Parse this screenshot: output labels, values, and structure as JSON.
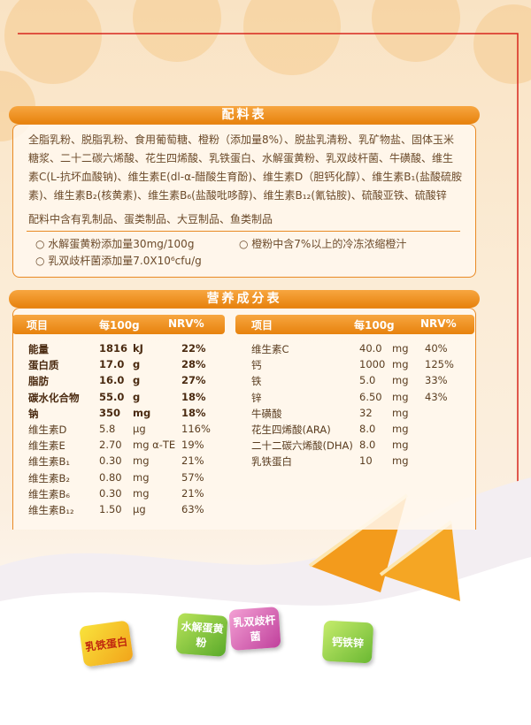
{
  "ingredients": {
    "title": "配料表",
    "text": "全脂乳粉、脱脂乳粉、食用葡萄糖、橙粉（添加量8%）、脱盐乳清粉、乳矿物盐、固体玉米糖浆、二十二碳六烯酸、花生四烯酸、乳铁蛋白、水解蛋黄粉、乳双歧杆菌、牛磺酸、维生素C(L-抗坏血酸钠)、维生素E(dl-α-醋酸生育酚)、维生素D（胆钙化醇）、维生素B₁(盐酸硫胺素)、维生素B₂(核黄素)、维生素B₆(盐酸吡哆醇)、维生素B₁₂(氰钴胺)、硫酸亚铁、硫酸锌",
    "allergens": "配料中含有乳制品、蛋类制品、大豆制品、鱼类制品",
    "notes": [
      "水解蛋黄粉添加量30mg/100g",
      "橙粉中含7%以上的冷冻浓缩橙汁",
      "乳双歧杆菌添加量7.0X10⁶cfu/g"
    ]
  },
  "nutrition": {
    "title": "营养成分表",
    "headers": [
      "项目",
      "每100g",
      "NRV%"
    ],
    "left_rows": [
      [
        "能量",
        "1816",
        "kJ",
        "22%"
      ],
      [
        "蛋白质",
        "17.0",
        "g",
        "28%"
      ],
      [
        "脂肪",
        "16.0",
        "g",
        "27%"
      ],
      [
        "碳水化合物",
        "55.0",
        "g",
        "18%"
      ],
      [
        "钠",
        "350",
        "mg",
        "18%"
      ],
      [
        "维生素D",
        "5.8",
        "μg",
        "116%"
      ],
      [
        "维生素E",
        "2.70",
        "mg α-TE",
        "19%"
      ],
      [
        "维生素B₁",
        "0.30",
        "mg",
        "21%"
      ],
      [
        "维生素B₂",
        "0.80",
        "mg",
        "57%"
      ],
      [
        "维生素B₆",
        "0.30",
        "mg",
        "21%"
      ],
      [
        "维生素B₁₂",
        "1.50",
        "μg",
        "63%"
      ]
    ],
    "right_rows": [
      [
        "维生素C",
        "40.0",
        "mg",
        "40%"
      ],
      [
        "钙",
        "1000",
        "mg",
        "125%"
      ],
      [
        "铁",
        "5.0",
        "mg",
        "33%"
      ],
      [
        "锌",
        "6.50",
        "mg",
        "43%"
      ],
      [
        "牛磺酸",
        "32",
        "mg"
      ],
      [
        "花生四烯酸(ARA)",
        "8.0",
        "mg"
      ],
      [
        "二十二碳六烯酸(DHA)",
        "8.0",
        "mg"
      ],
      [
        "乳铁蛋白",
        "10",
        "mg"
      ]
    ]
  },
  "cubes": [
    "乳铁蛋白",
    "水解蛋黄粉",
    "乳双歧杆菌",
    "钙铁锌"
  ]
}
